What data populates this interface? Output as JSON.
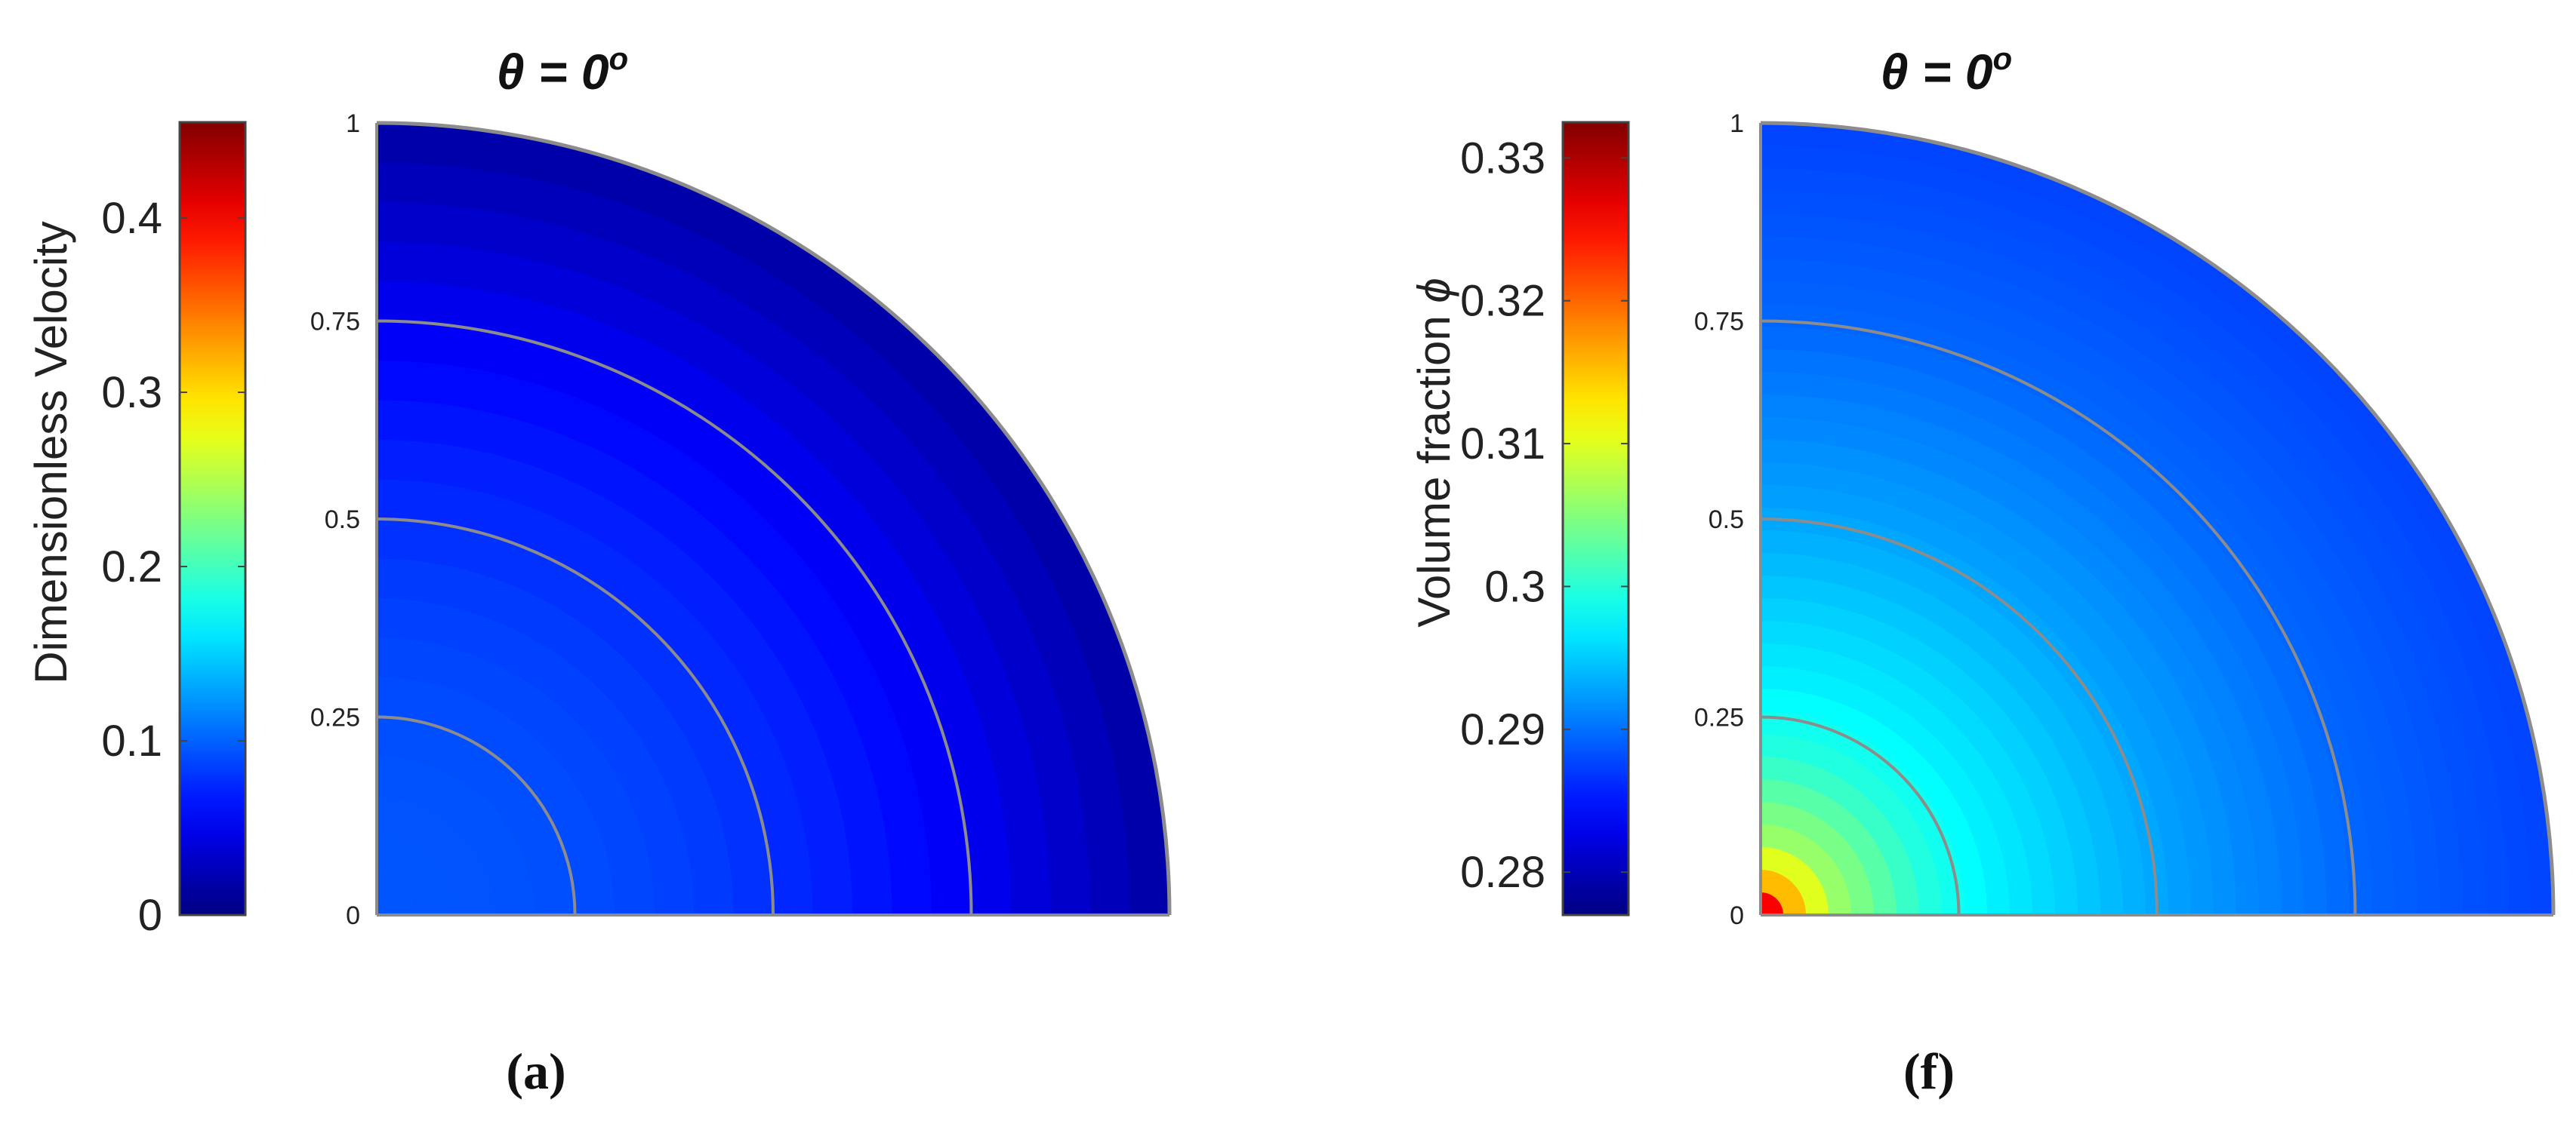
{
  "chart_data": [
    {
      "type": "heatmap",
      "panel_label": "(a)",
      "title_symbol": "θ",
      "title_text": " = 0",
      "title_sup": "o",
      "radial_ticks": [
        "0",
        "0.25",
        "0.5",
        "0.75",
        "1"
      ],
      "radial_tick_values": [
        0,
        0.25,
        0.5,
        0.75,
        1
      ],
      "colorbar": {
        "label": "Dimensionless Velocity",
        "label_symbol": "",
        "range": [
          0,
          0.455
        ],
        "ticks": [
          "0",
          "0.1",
          "0.2",
          "0.3",
          "0.4"
        ],
        "tick_values": [
          0,
          0.1,
          0.2,
          0.3,
          0.4
        ]
      },
      "contour_bands": 20,
      "radial_profile": {
        "r": [
          0,
          0.2,
          0.4,
          0.6,
          0.75,
          0.9,
          1.0
        ],
        "value": [
          0.095,
          0.093,
          0.085,
          0.068,
          0.052,
          0.03,
          0.015
        ]
      }
    },
    {
      "type": "heatmap",
      "panel_label": "(f)",
      "title_symbol": "θ",
      "title_text": " = 0",
      "title_sup": "o",
      "radial_ticks": [
        "0",
        "0.25",
        "0.5",
        "0.75",
        "1"
      ],
      "radial_tick_values": [
        0,
        0.25,
        0.5,
        0.75,
        1
      ],
      "colorbar": {
        "label": "Volume fraction ",
        "label_symbol": "ϕ",
        "range": [
          0.277,
          0.3325
        ],
        "ticks": [
          "0.28",
          "0.29",
          "0.3",
          "0.31",
          "0.32",
          "0.33"
        ],
        "tick_values": [
          0.28,
          0.29,
          0.3,
          0.31,
          0.32,
          0.33
        ]
      },
      "contour_bands": 35,
      "radial_profile": {
        "r": [
          0,
          0.02,
          0.05,
          0.1,
          0.2,
          0.3,
          0.5,
          0.75,
          1.0
        ],
        "value": [
          0.3325,
          0.323,
          0.313,
          0.306,
          0.3,
          0.297,
          0.293,
          0.2895,
          0.2875
        ]
      }
    }
  ]
}
